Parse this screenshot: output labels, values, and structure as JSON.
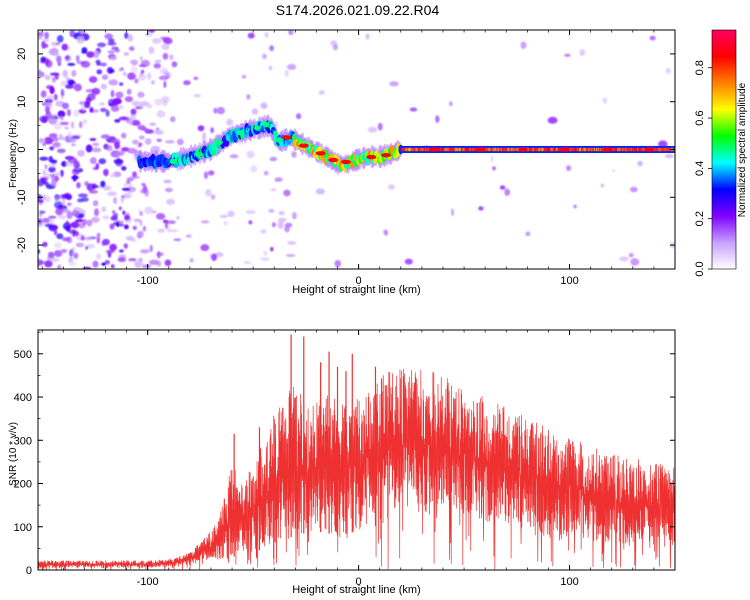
{
  "title": "S174.2026.021.09.22.R04",
  "chart_data": [
    {
      "type": "heatmap",
      "name": "spectrogram",
      "title": "S174.2026.021.09.22.R04",
      "xlabel": "Height of straight line (km)",
      "ylabel": "Frequency (Hz)",
      "xlim": [
        -152,
        150
      ],
      "ylim": [
        -25,
        25
      ],
      "x_ticks": [
        -100,
        0,
        100
      ],
      "x_tick_labels": [
        "-100",
        "0",
        "100"
      ],
      "y_ticks": [
        -20,
        -10,
        0,
        10,
        20
      ],
      "y_tick_labels": [
        "-20",
        "-10",
        "0",
        "10",
        "20"
      ],
      "ridge_frequency_hz": [
        [
          -102,
          -2.5
        ],
        [
          -90,
          -2.5
        ],
        [
          -80,
          -1.5
        ],
        [
          -70,
          0
        ],
        [
          -60,
          3
        ],
        [
          -48,
          4.5
        ],
        [
          -42,
          5
        ],
        [
          -38,
          1.5
        ],
        [
          -32,
          2.5
        ],
        [
          -24,
          0.5
        ],
        [
          -15,
          -1.5
        ],
        [
          -10,
          -3
        ],
        [
          -5,
          -3
        ],
        [
          0,
          -2
        ],
        [
          5,
          -1.5
        ],
        [
          10,
          -1.5
        ],
        [
          15,
          -1
        ],
        [
          20,
          0
        ],
        [
          150,
          0
        ]
      ],
      "colorbar": {
        "label": "Normalized spectral amplitude",
        "ticks": [
          "0.0",
          "0.2",
          "0.4",
          "0.6",
          "0.8"
        ],
        "range": [
          0,
          0.95
        ],
        "colors": [
          "#ffffff",
          "#c8a0ff",
          "#8000ff",
          "#0000ff",
          "#00ffff",
          "#00ff00",
          "#ffff00",
          "#ff8000",
          "#ff0000",
          "#ff0060"
        ]
      }
    },
    {
      "type": "line",
      "name": "snr",
      "xlabel": "Height of straight line (km)",
      "ylabel": "SNR (10 * v/v)",
      "xlim": [
        -152,
        150
      ],
      "ylim": [
        0,
        555
      ],
      "x_ticks": [
        -100,
        0,
        100
      ],
      "x_tick_labels": [
        "-100",
        "0",
        "100"
      ],
      "y_ticks": [
        0,
        100,
        200,
        300,
        400,
        500
      ],
      "y_tick_labels": [
        "0",
        "100",
        "200",
        "300",
        "400",
        "500"
      ],
      "color": "#ee3030",
      "envelope_upper": [
        [
          -152,
          22
        ],
        [
          -100,
          22
        ],
        [
          -90,
          25
        ],
        [
          -80,
          40
        ],
        [
          -70,
          90
        ],
        [
          -65,
          140
        ],
        [
          -60,
          250
        ],
        [
          -55,
          210
        ],
        [
          -50,
          250
        ],
        [
          -45,
          300
        ],
        [
          -40,
          360
        ],
        [
          -35,
          400
        ],
        [
          -30,
          440
        ],
        [
          -25,
          380
        ],
        [
          -20,
          400
        ],
        [
          -15,
          420
        ],
        [
          -10,
          400
        ],
        [
          -5,
          380
        ],
        [
          0,
          400
        ],
        [
          10,
          450
        ],
        [
          20,
          470
        ],
        [
          30,
          470
        ],
        [
          40,
          450
        ],
        [
          50,
          420
        ],
        [
          60,
          400
        ],
        [
          70,
          380
        ],
        [
          80,
          350
        ],
        [
          90,
          330
        ],
        [
          100,
          310
        ],
        [
          110,
          290
        ],
        [
          120,
          270
        ],
        [
          130,
          260
        ],
        [
          140,
          250
        ],
        [
          150,
          245
        ]
      ],
      "envelope_lower": [
        [
          -152,
          5
        ],
        [
          -100,
          5
        ],
        [
          -90,
          8
        ],
        [
          -80,
          12
        ],
        [
          -70,
          20
        ],
        [
          -60,
          30
        ],
        [
          -50,
          40
        ],
        [
          -40,
          60
        ],
        [
          -30,
          80
        ],
        [
          -20,
          90
        ],
        [
          -10,
          80
        ],
        [
          0,
          90
        ],
        [
          20,
          120
        ],
        [
          40,
          130
        ],
        [
          60,
          110
        ],
        [
          80,
          90
        ],
        [
          100,
          70
        ],
        [
          120,
          60
        ],
        [
          150,
          50
        ]
      ],
      "spikes": [
        [
          -59,
          315
        ],
        [
          -47,
          330
        ],
        [
          -32,
          545
        ],
        [
          -26,
          540
        ],
        [
          -18,
          480
        ],
        [
          -14,
          505
        ],
        [
          -10,
          470
        ],
        [
          -6,
          460
        ],
        [
          -3,
          500
        ],
        [
          8,
          470
        ]
      ]
    }
  ]
}
